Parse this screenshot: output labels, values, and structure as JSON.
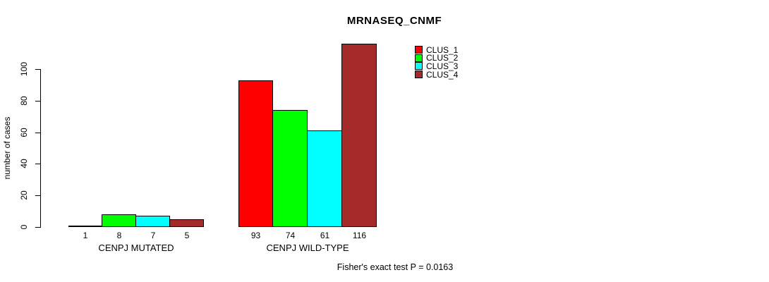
{
  "chart_data": {
    "type": "bar",
    "title": "MRNASEQ_CNMF",
    "ylabel": "number of cases",
    "ylim": [
      0,
      100
    ],
    "yticks": [
      0,
      20,
      40,
      60,
      80,
      100
    ],
    "grid": false,
    "legend_position": "top-right",
    "categories": [
      "CENPJ MUTATED",
      "CENPJ WILD-TYPE"
    ],
    "series": [
      {
        "name": "CLUS_1",
        "color": "#FF0000",
        "values": [
          1,
          93
        ]
      },
      {
        "name": "CLUS_2",
        "color": "#00FF00",
        "values": [
          8,
          74
        ]
      },
      {
        "name": "CLUS_3",
        "color": "#00FFFF",
        "values": [
          7,
          61
        ]
      },
      {
        "name": "CLUS_4",
        "color": "#A52A2A",
        "values": [
          5,
          116
        ]
      }
    ],
    "groups": [
      {
        "label": "CENPJ MUTATED",
        "values": [
          1,
          8,
          7,
          5
        ]
      },
      {
        "label": "CENPJ WILD-TYPE",
        "values": [
          93,
          74,
          61,
          116
        ]
      }
    ],
    "bar_value_labels": [
      [
        1,
        8,
        7,
        5
      ],
      [
        93,
        74,
        61,
        116
      ]
    ]
  },
  "footer": {
    "caption": "Fisher's exact test P = 0.0163"
  }
}
